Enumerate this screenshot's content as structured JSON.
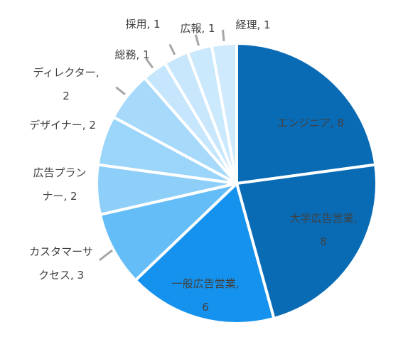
{
  "chart_data": {
    "type": "pie",
    "title": "",
    "legend": "none",
    "slices": [
      {
        "category": "エンジニア",
        "value": 8,
        "color": "#0A6BB5",
        "label": [
          "エンジニア, 8"
        ]
      },
      {
        "category": "大学広告営業",
        "value": 8,
        "color": "#0A6BB5",
        "label": [
          "大学広告営業,",
          "8"
        ]
      },
      {
        "category": "一般広告営業",
        "value": 6,
        "color": "#1592EE",
        "label": [
          "一般広告営業,",
          "6"
        ]
      },
      {
        "category": "カスタマーサクセス",
        "value": 3,
        "color": "#64BDF7",
        "label": [
          "カスタマーサ",
          "クセス, 3"
        ]
      },
      {
        "category": "広告プランナー",
        "value": 2,
        "color": "#8ECFFA",
        "label": [
          "広告プラン",
          "ナー, 2"
        ]
      },
      {
        "category": "デザイナー",
        "value": 2,
        "color": "#9BD5FA",
        "label": [
          "デザイナー, 2"
        ]
      },
      {
        "category": "ディレクター",
        "value": 2,
        "color": "#A6D9FA",
        "label": [
          "ディレクター,",
          "2"
        ]
      },
      {
        "category": "総務",
        "value": 1,
        "color": "#C5E6FC",
        "label": [
          "総務, 1"
        ]
      },
      {
        "category": "採用",
        "value": 1,
        "color": "#C8E7FC",
        "label": [
          "採用, 1"
        ]
      },
      {
        "category": "広報",
        "value": 1,
        "color": "#CBE9FC",
        "label": [
          "広報, 1"
        ]
      },
      {
        "category": "経理",
        "value": 1,
        "color": "#CFEAFC",
        "label": [
          "経理, 1"
        ]
      }
    ]
  }
}
